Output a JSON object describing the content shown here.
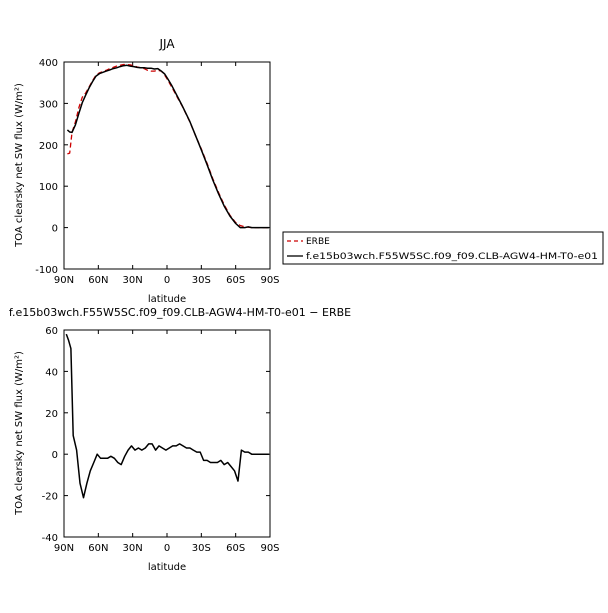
{
  "chart_data": [
    {
      "type": "line",
      "title": "JJA",
      "xlabel": "latitude",
      "ylabel": "TOA clearsky net SW flux (W/m²)",
      "xlim": [
        90,
        -90
      ],
      "ylim": [
        -100,
        400
      ],
      "x_ticks": [
        {
          "value": 90,
          "label": "90N"
        },
        {
          "value": 60,
          "label": "60N"
        },
        {
          "value": 30,
          "label": "30N"
        },
        {
          "value": 0,
          "label": "0"
        },
        {
          "value": -30,
          "label": "30S"
        },
        {
          "value": -60,
          "label": "60S"
        },
        {
          "value": -90,
          "label": "90S"
        }
      ],
      "y_ticks": [
        -100,
        0,
        100,
        200,
        300,
        400
      ],
      "legend_placement": "right",
      "series": [
        {
          "name": "ERBE",
          "color": "#cc0000",
          "dash": "dashed",
          "x": [
            87,
            85,
            83,
            80,
            77,
            74,
            71,
            68,
            65,
            62,
            59,
            56,
            53,
            50,
            47,
            44,
            41,
            38,
            35,
            32,
            29,
            26,
            23,
            20,
            17,
            14,
            11,
            8,
            5,
            2,
            -1,
            -4,
            -7,
            -10,
            -13,
            -16,
            -20,
            -25,
            -30,
            -35,
            -40,
            -45,
            -50,
            -55,
            -60,
            -64,
            -68,
            -71,
            -74,
            -77,
            -80,
            -83,
            -86,
            -89
          ],
          "y": [
            178,
            180,
            230,
            255,
            290,
            315,
            325,
            340,
            355,
            368,
            374,
            377,
            380,
            384,
            387,
            390,
            392,
            394,
            394,
            393,
            391,
            388,
            386,
            384,
            380,
            378,
            378,
            380,
            378,
            368,
            355,
            340,
            325,
            310,
            295,
            278,
            255,
            222,
            190,
            155,
            118,
            85,
            55,
            30,
            12,
            5,
            2,
            1,
            0,
            0,
            0,
            0,
            0,
            0
          ]
        },
        {
          "name": "f.e15b03wch.F55W5SC.f09_f09.CLB-AGW4-HM-T0-e01",
          "color": "#000000",
          "dash": "solid",
          "x": [
            87,
            85,
            83,
            80,
            77,
            74,
            71,
            68,
            65,
            62,
            59,
            56,
            53,
            50,
            47,
            44,
            41,
            38,
            35,
            32,
            29,
            26,
            23,
            20,
            17,
            14,
            11,
            8,
            5,
            2,
            -1,
            -4,
            -7,
            -10,
            -13,
            -16,
            -20,
            -25,
            -30,
            -35,
            -40,
            -45,
            -50,
            -55,
            -60,
            -64,
            -68,
            -71,
            -74,
            -77,
            -80,
            -83,
            -86,
            -89
          ],
          "y": [
            236,
            231,
            230,
            248,
            276,
            302,
            320,
            338,
            353,
            366,
            372,
            375,
            378,
            381,
            384,
            386,
            389,
            391,
            392,
            390,
            389,
            387,
            386,
            386,
            385,
            385,
            383,
            384,
            378,
            371,
            358,
            344,
            328,
            312,
            296,
            279,
            256,
            222,
            188,
            152,
            115,
            82,
            52,
            28,
            10,
            0,
            0,
            2,
            0,
            0,
            0,
            0,
            0,
            0
          ]
        }
      ]
    },
    {
      "type": "line",
      "title": "f.e15b03wch.F55W5SC.f09_f09.CLB-AGW4-HM-T0-e01 − ERBE",
      "xlabel": "latitude",
      "ylabel": "TOA clearsky net SW flux (W/m²)",
      "xlim": [
        90,
        -90
      ],
      "ylim": [
        -40,
        60
      ],
      "x_ticks": [
        {
          "value": 90,
          "label": "90N"
        },
        {
          "value": 60,
          "label": "60N"
        },
        {
          "value": 30,
          "label": "30N"
        },
        {
          "value": 0,
          "label": "0"
        },
        {
          "value": -30,
          "label": "30S"
        },
        {
          "value": -60,
          "label": "60S"
        },
        {
          "value": -90,
          "label": "90S"
        }
      ],
      "y_ticks": [
        -40,
        -20,
        0,
        20,
        40,
        60
      ],
      "series": [
        {
          "color": "#000000",
          "dash": "solid",
          "x": [
            88,
            86,
            84,
            82,
            79,
            76,
            73,
            70,
            67,
            64,
            61,
            58,
            55,
            52,
            49,
            46,
            43,
            40,
            37,
            34,
            31,
            28,
            25,
            22,
            19,
            16,
            13,
            10,
            7,
            4,
            1,
            -2,
            -5,
            -8,
            -11,
            -14,
            -17,
            -20,
            -23,
            -26,
            -29,
            -32,
            -35,
            -38,
            -41,
            -44,
            -47,
            -50,
            -53,
            -56,
            -59,
            -62,
            -65,
            -68,
            -71,
            -74,
            -77,
            -80,
            -83,
            -86,
            -89
          ],
          "y": [
            58,
            55,
            51,
            9,
            2,
            -14,
            -21,
            -14,
            -8,
            -4,
            0,
            -2,
            -2,
            -2,
            -1,
            -2,
            -4,
            -5,
            -1,
            2,
            4,
            2,
            3,
            2,
            3,
            5,
            5,
            2,
            4,
            3,
            2,
            3,
            4,
            4,
            5,
            4,
            3,
            3,
            2,
            1,
            1,
            -3,
            -3,
            -4,
            -4,
            -4,
            -3,
            -5,
            -4,
            -6,
            -8,
            -13,
            2,
            1,
            1,
            0,
            0,
            0,
            0,
            0,
            0
          ]
        }
      ]
    }
  ]
}
